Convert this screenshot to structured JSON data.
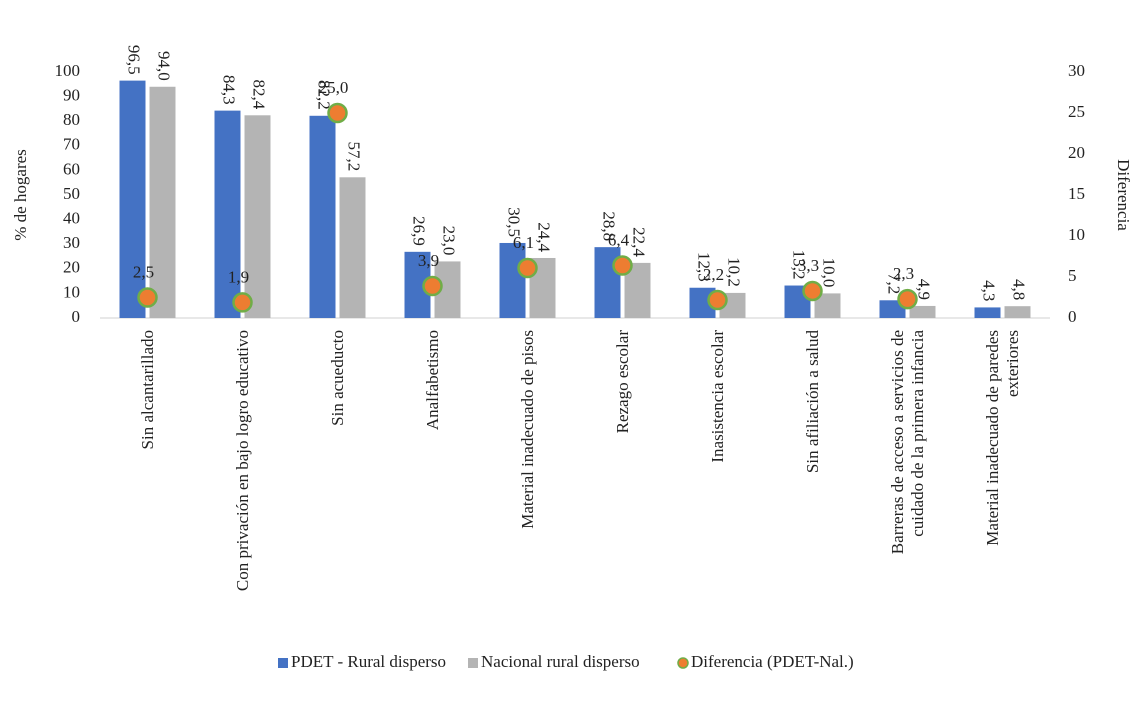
{
  "chart_data": {
    "type": "bar",
    "categories": [
      "Sin alcantarillado",
      "Con privación en bajo logro educativo",
      "Sin acueducto",
      "Analfabetismo",
      "Material inadecuado de pisos",
      "Rezago escolar",
      "Inasistencia escolar",
      "Sin afiliación a salud",
      "Barreras de acceso a servicios de cuidado de la primera infancia",
      "Material inadecuado de paredes exteriores"
    ],
    "series": [
      {
        "name": "PDET - Rural disperso",
        "type": "bar",
        "color": "#4472c4",
        "values": [
          96.5,
          84.3,
          82.2,
          26.9,
          30.5,
          28.8,
          12.3,
          13.2,
          7.2,
          4.3
        ],
        "value_labels": [
          "96,5",
          "84,3",
          "82,2",
          "26,9",
          "30,5",
          "28,8",
          "12,3",
          "13,2",
          "7,2",
          "4,3"
        ]
      },
      {
        "name": "Nacional rural disperso",
        "type": "bar",
        "color": "#b4b4b4",
        "values": [
          94.0,
          82.4,
          57.2,
          23.0,
          24.4,
          22.4,
          10.2,
          10.0,
          4.9,
          4.8
        ],
        "value_labels": [
          "94,0",
          "82,4",
          "57,2",
          "23,0",
          "24,4",
          "22,4",
          "10,2",
          "10,0",
          "4,9",
          "4,8"
        ]
      },
      {
        "name": "Diferencia (PDET-Nal.)",
        "type": "scatter",
        "axis": "y2",
        "color": "#ed7d31",
        "edge_color": "#70ad47",
        "values": [
          2.5,
          1.9,
          25.0,
          3.9,
          6.1,
          6.4,
          2.2,
          3.3,
          2.3,
          null
        ],
        "value_labels": [
          "2,5",
          "1,9",
          "25,0",
          "3,9",
          "6,1",
          "6,4",
          "2,2",
          "3,3",
          "2,3",
          null
        ]
      }
    ],
    "y_label": "% de hogares",
    "y2_label": "Diferencia",
    "ylim": [
      0,
      100
    ],
    "yticks": [
      0,
      10,
      20,
      30,
      40,
      50,
      60,
      70,
      80,
      90,
      100
    ],
    "y2lim": [
      0,
      30
    ],
    "y2ticks": [
      0,
      5,
      10,
      15,
      20,
      25,
      30
    ],
    "legend": "bottom"
  }
}
